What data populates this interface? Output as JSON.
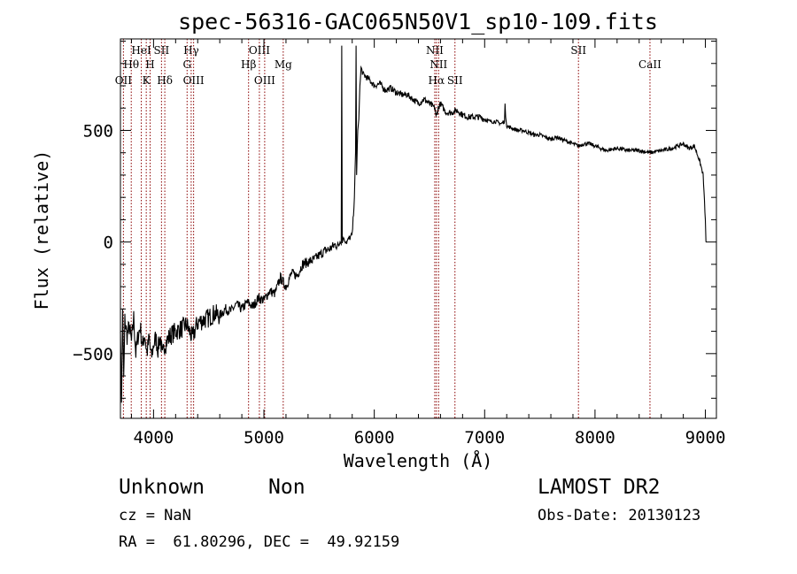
{
  "chart_data": {
    "type": "line",
    "title": "spec-56316-GAC065N50V1_sp10-109.fits",
    "xlabel": "Wavelength (Å)",
    "ylabel": "Flux (relative)",
    "xlim": [
      3700,
      9100
    ],
    "ylim": [
      -790,
      910
    ],
    "x_ticks": [
      4000,
      5000,
      6000,
      7000,
      8000,
      9000
    ],
    "y_ticks": [
      -500,
      0,
      500
    ],
    "grid": false,
    "line_color": "#000000",
    "marker_line_color": "#8b0000",
    "series": [
      {
        "x": [
          3700,
          3710,
          3720,
          3730,
          3740,
          3760,
          3780,
          3800,
          3820,
          3840,
          3860,
          3880,
          3900,
          3920,
          3940,
          3960,
          3980,
          4000,
          4020,
          4040,
          4060,
          4080,
          4100,
          4150,
          4200,
          4250,
          4300,
          4350,
          4400,
          4450,
          4500,
          4550,
          4600,
          4650,
          4700,
          4750,
          4800,
          4850,
          4900,
          4950,
          5000,
          5050,
          5100,
          5150,
          5200,
          5250,
          5300,
          5350,
          5400,
          5450,
          5500,
          5550,
          5600,
          5650,
          5670,
          5690,
          5700,
          5705,
          5710,
          5720,
          5730,
          5750,
          5780,
          5800,
          5820,
          5830,
          5835,
          5840,
          5850,
          5860,
          5870,
          5880,
          5900,
          5950,
          6000,
          6050,
          6100,
          6150,
          6200,
          6250,
          6300,
          6350,
          6400,
          6450,
          6500,
          6550,
          6560,
          6580,
          6600,
          6650,
          6700,
          6750,
          6800,
          6850,
          6900,
          6950,
          7000,
          7050,
          7100,
          7150,
          7180,
          7185,
          7190,
          7200,
          7250,
          7300,
          7350,
          7400,
          7450,
          7500,
          7550,
          7600,
          7650,
          7700,
          7750,
          7800,
          7850,
          7900,
          7950,
          8000,
          8100,
          8200,
          8300,
          8400,
          8500,
          8600,
          8700,
          8800,
          8850,
          8900,
          8950,
          8980,
          9000,
          9005
        ],
        "y": [
          -400,
          -720,
          -300,
          -600,
          -350,
          -420,
          -380,
          -450,
          -340,
          -500,
          -420,
          -380,
          -470,
          -410,
          -500,
          -430,
          -520,
          -460,
          -430,
          -480,
          -420,
          -520,
          -460,
          -420,
          -400,
          -390,
          -370,
          -430,
          -360,
          -350,
          -340,
          -320,
          -330,
          -300,
          -310,
          -280,
          -300,
          -270,
          -290,
          -250,
          -260,
          -220,
          -230,
          -160,
          -200,
          -140,
          -150,
          -100,
          -90,
          -80,
          -60,
          -40,
          -30,
          -10,
          -20,
          0,
          -10,
          880,
          -5,
          20,
          10,
          0,
          20,
          30,
          200,
          400,
          880,
          300,
          500,
          550,
          700,
          780,
          750,
          730,
          700,
          710,
          680,
          690,
          670,
          660,
          660,
          640,
          620,
          640,
          620,
          600,
          560,
          600,
          620,
          580,
          580,
          590,
          570,
          560,
          560,
          560,
          550,
          540,
          540,
          530,
          540,
          620,
          560,
          520,
          510,
          500,
          500,
          490,
          480,
          480,
          470,
          460,
          470,
          460,
          450,
          440,
          430,
          440,
          440,
          430,
          410,
          420,
          410,
          410,
          400,
          410,
          420,
          440,
          420,
          430,
          360,
          300,
          100,
          0
        ]
      }
    ],
    "emission_lines": [
      {
        "x": 3727,
        "labels": [
          "OII"
        ],
        "row": [
          3
        ]
      },
      {
        "x": 3798,
        "labels": [
          "Hθ"
        ],
        "row": [
          2
        ]
      },
      {
        "x": 3889,
        "labels": [
          "HeI"
        ],
        "row": [
          1
        ]
      },
      {
        "x": 3934,
        "labels": [
          "K"
        ],
        "row": [
          3
        ]
      },
      {
        "x": 3969,
        "labels": [
          "H"
        ],
        "row": [
          2
        ]
      },
      {
        "x": 4072,
        "labels": [
          "SII"
        ],
        "row": [
          1
        ]
      },
      {
        "x": 4102,
        "labels": [
          "Hδ"
        ],
        "row": [
          3
        ]
      },
      {
        "x": 4304,
        "labels": [
          "G"
        ],
        "row": [
          2
        ]
      },
      {
        "x": 4341,
        "labels": [
          "Hγ"
        ],
        "row": [
          1
        ]
      },
      {
        "x": 4363,
        "labels": [
          "OIII"
        ],
        "row": [
          3
        ]
      },
      {
        "x": 4861,
        "labels": [
          "Hβ"
        ],
        "row": [
          2
        ]
      },
      {
        "x": 4959,
        "labels": [
          "OIII"
        ],
        "row": [
          1
        ]
      },
      {
        "x": 5007,
        "labels": [
          "OIII"
        ],
        "row": [
          3
        ]
      },
      {
        "x": 5175,
        "labels": [
          "Mg"
        ],
        "row": [
          2
        ]
      },
      {
        "x": 6548,
        "labels": [
          "NII"
        ],
        "row": [
          1
        ]
      },
      {
        "x": 6563,
        "labels": [
          "Hα"
        ],
        "row": [
          3
        ]
      },
      {
        "x": 6583,
        "labels": [
          "NII"
        ],
        "row": [
          2
        ]
      },
      {
        "x": 6731,
        "labels": [
          "SII"
        ],
        "row": [
          3
        ]
      },
      {
        "x": 7850,
        "labels": [
          "SII"
        ],
        "row": [
          1
        ]
      },
      {
        "x": 8498,
        "labels": [
          "CaII"
        ],
        "row": [
          2
        ]
      }
    ]
  },
  "info": {
    "class_label": "Unknown",
    "subclass_label": "Non",
    "survey": "LAMOST DR2",
    "cz": "cz = NaN",
    "obs_date": "Obs-Date: 20130123",
    "coords": "RA =  61.80296, DEC =  49.92159"
  }
}
